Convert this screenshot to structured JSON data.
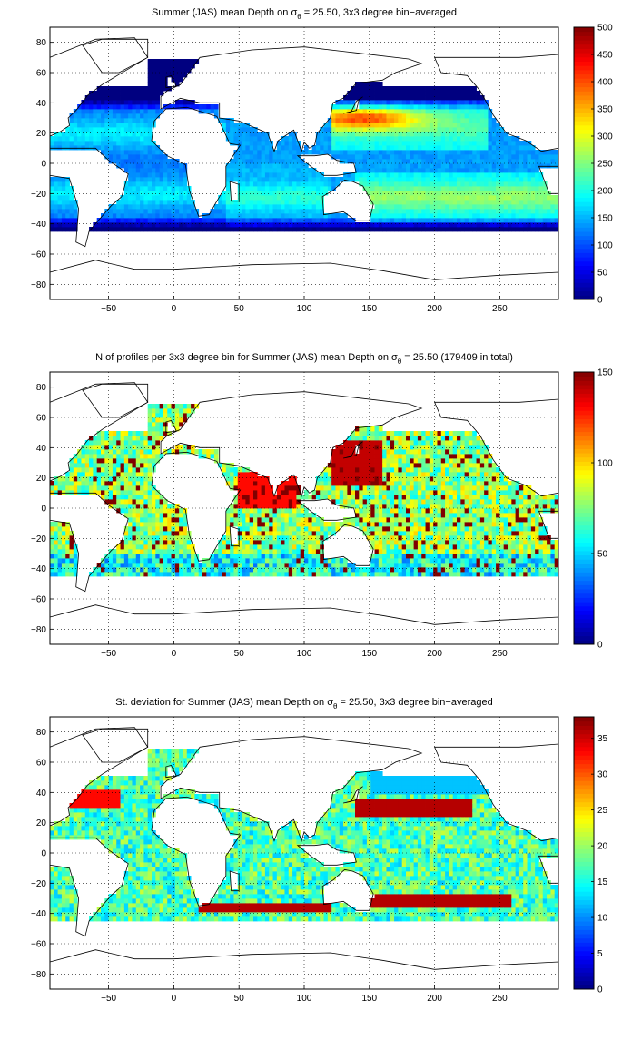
{
  "figure": {
    "panels": [
      {
        "title_prefix": "Summer (JAS) mean Depth on σ",
        "title_sub": "θ",
        "title_suffix": " = 25.50, 3x3 degree bin−averaged",
        "colorbar_ticks": [
          "0",
          "50",
          "100",
          "150",
          "200",
          "250",
          "300",
          "350",
          "400",
          "450",
          "500"
        ]
      },
      {
        "title_prefix": "N of profiles per 3x3 degree bin for Summer (JAS) mean Depth on σ",
        "title_sub": "θ",
        "title_suffix": " = 25.50 (179409 in total)",
        "colorbar_ticks": [
          "0",
          "50",
          "100",
          "150"
        ]
      },
      {
        "title_prefix": "St. deviation for Summer (JAS) mean Depth on σ",
        "title_sub": "θ",
        "title_suffix": " = 25.50, 3x3 degree bin−averaged",
        "colorbar_ticks": [
          "0",
          "5",
          "10",
          "15",
          "20",
          "25",
          "30",
          "35"
        ]
      }
    ],
    "x_ticks": [
      "−50",
      "0",
      "50",
      "100",
      "150",
      "200",
      "250"
    ],
    "y_ticks": [
      "80",
      "60",
      "40",
      "20",
      "0",
      "−20",
      "−40",
      "−60",
      "−80"
    ],
    "colormap": "jet"
  },
  "chart_data": [
    {
      "type": "heatmap",
      "title": "Summer (JAS) mean Depth on σθ = 25.50, 3x3 degree bin−averaged",
      "xlabel": "",
      "ylabel": "",
      "xlim": [
        -95,
        295
      ],
      "ylim": [
        -90,
        90
      ],
      "x_tick_values": [
        -50,
        0,
        50,
        100,
        150,
        200,
        250
      ],
      "y_tick_values": [
        -80,
        -60,
        -40,
        -20,
        0,
        20,
        40,
        60,
        80
      ],
      "clim": [
        0,
        500
      ],
      "colorbar_tick_values": [
        0,
        50,
        100,
        150,
        200,
        250,
        300,
        350,
        400,
        450,
        500
      ],
      "grid": true,
      "approx_values": [
        {
          "region": "North Pacific subtropical gyre (30N, 140E)",
          "value": 380
        },
        {
          "region": "North Pacific 20–30N",
          "value": 250
        },
        {
          "region": "South Pacific 20–30S",
          "value": 260
        },
        {
          "region": "Equatorial Pacific",
          "value": 160
        },
        {
          "region": "Indian Ocean 20S",
          "value": 200
        },
        {
          "region": "Atlantic subtropics",
          "value": 170
        },
        {
          "region": "Subpolar / high latitude edges",
          "value": 40
        }
      ]
    },
    {
      "type": "heatmap",
      "title": "N of profiles per 3x3 degree bin for Summer (JAS) mean Depth on σθ = 25.50 (179409 in total)",
      "xlabel": "",
      "ylabel": "",
      "xlim": [
        -95,
        295
      ],
      "ylim": [
        -90,
        90
      ],
      "x_tick_values": [
        -50,
        0,
        50,
        100,
        150,
        200,
        250
      ],
      "y_tick_values": [
        -80,
        -60,
        -40,
        -20,
        0,
        20,
        40,
        60,
        80
      ],
      "clim": [
        0,
        150
      ],
      "colorbar_tick_values": [
        0,
        50,
        100,
        150
      ],
      "grid": true,
      "total_profiles": 179409,
      "approx_values": [
        {
          "region": "Northwest Pacific (Japan)",
          "value": 150
        },
        {
          "region": "Arabian Sea / Bay of Bengal",
          "value": 150
        },
        {
          "region": "Open Pacific",
          "value": 70
        },
        {
          "region": "South Atlantic",
          "value": 40
        },
        {
          "region": "Southern edge",
          "value": 25
        }
      ]
    },
    {
      "type": "heatmap",
      "title": "St. deviation for Summer (JAS) mean Depth on σθ = 25.50, 3x3 degree bin−averaged",
      "xlabel": "",
      "ylabel": "",
      "xlim": [
        -95,
        295
      ],
      "ylim": [
        -90,
        90
      ],
      "x_tick_values": [
        -50,
        0,
        50,
        100,
        150,
        200,
        250
      ],
      "y_tick_values": [
        -80,
        -60,
        -40,
        -20,
        0,
        20,
        40,
        60,
        80
      ],
      "clim": [
        0,
        38
      ],
      "colorbar_tick_values": [
        0,
        5,
        10,
        15,
        20,
        25,
        30,
        35
      ],
      "grid": true,
      "approx_values": [
        {
          "region": "Kuroshio extension band (30N)",
          "value": 36
        },
        {
          "region": "South Pacific 30S band",
          "value": 36
        },
        {
          "region": "Agulhas / South Indian 35S",
          "value": 36
        },
        {
          "region": "Gulf Stream",
          "value": 33
        },
        {
          "region": "North Pacific interior",
          "value": 14
        },
        {
          "region": "Equatorial Pacific",
          "value": 20
        }
      ]
    }
  ]
}
